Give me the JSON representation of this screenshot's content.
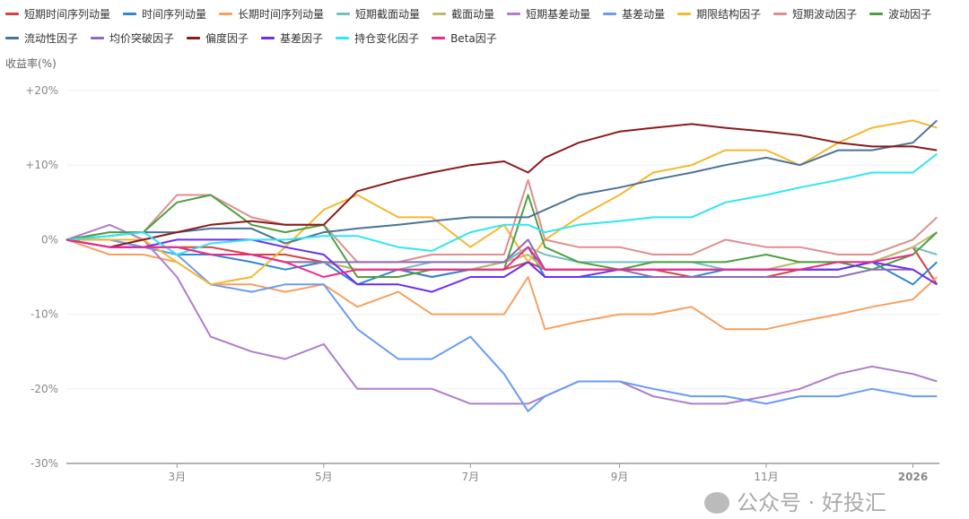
{
  "chart_data": {
    "type": "line",
    "title": "",
    "ylabel": "收益率(%)",
    "xlabel": "",
    "ylim": [
      -30,
      20
    ],
    "xlim": [
      "2025-01-14",
      "2026-01-12"
    ],
    "yticks": [
      "+20%",
      "+10%",
      "0%",
      "-10%",
      "-20%",
      "-30%"
    ],
    "ytick_values": [
      20,
      10,
      0,
      -10,
      -20,
      -30
    ],
    "xticks": [
      "3月",
      "5月",
      "7月",
      "9月",
      "11月",
      "2026"
    ],
    "xtick_dates": [
      "2025-03-01",
      "2025-05-01",
      "2025-07-01",
      "2025-09-01",
      "2025-11-01",
      "2026-01-01"
    ],
    "grid": true,
    "legend_position": "top",
    "x": [
      "2025-01-14",
      "2025-02-01",
      "2025-02-15",
      "2025-03-01",
      "2025-03-15",
      "2025-04-01",
      "2025-04-15",
      "2025-05-01",
      "2025-05-15",
      "2025-06-01",
      "2025-06-15",
      "2025-07-01",
      "2025-07-15",
      "2025-07-25",
      "2025-08-01",
      "2025-08-15",
      "2025-09-01",
      "2025-09-15",
      "2025-10-01",
      "2025-10-15",
      "2025-11-01",
      "2025-11-15",
      "2025-12-01",
      "2025-12-15",
      "2026-01-01",
      "2026-01-11"
    ],
    "series": [
      {
        "name": "短期时间序列动量",
        "color": "#D9413F",
        "values": [
          0,
          -1,
          -1,
          -1,
          -1,
          -2,
          -2,
          -3,
          -4,
          -4,
          -5,
          -4,
          -4,
          -3,
          -4,
          -4,
          -4,
          -4,
          -5,
          -5,
          -5,
          -4,
          -4,
          -3,
          -1,
          -6
        ]
      },
      {
        "name": "时间序列动量",
        "color": "#2E86D6",
        "values": [
          0,
          -1,
          -1,
          -2,
          -2,
          -3,
          -4,
          -3,
          -6,
          -4,
          -5,
          -4,
          -3,
          -1,
          -5,
          -5,
          -5,
          -5,
          -5,
          -4,
          -4,
          -4,
          -4,
          -3,
          -6,
          -3
        ]
      },
      {
        "name": "长期时间序列动量",
        "color": "#F7A05E",
        "values": [
          0,
          -2,
          -2,
          -3,
          -6,
          -6,
          -7,
          -6,
          -9,
          -7,
          -10,
          -10,
          -10,
          -5,
          -12,
          -11,
          -10,
          -10,
          -9,
          -12,
          -12,
          -11,
          -10,
          -9,
          -8,
          -5
        ]
      },
      {
        "name": "短期截面动量",
        "color": "#6FC1BF",
        "values": [
          0,
          0,
          -1,
          -1,
          -2,
          -2,
          -3,
          -3,
          -4,
          -4,
          -3,
          -3,
          -3,
          -1,
          -2,
          -3,
          -3,
          -3,
          -3,
          -4,
          -4,
          -3,
          -3,
          -3,
          -1,
          -2
        ]
      },
      {
        "name": "截面动量",
        "color": "#C0B86A",
        "values": [
          0,
          0,
          -1,
          -1,
          -2,
          -2,
          -3,
          -3,
          -4,
          -4,
          -4,
          -4,
          -3,
          -2,
          -4,
          -4,
          -4,
          -4,
          -4,
          -4,
          -4,
          -3,
          -3,
          -3,
          -1,
          1
        ]
      },
      {
        "name": "短期基差动量",
        "color": "#B07CCB",
        "values": [
          0,
          2,
          0,
          -5,
          -13,
          -15,
          -16,
          -14,
          -20,
          -20,
          -20,
          -22,
          -22,
          -22,
          -21,
          -19,
          -19,
          -21,
          -22,
          -22,
          -21,
          -20,
          -18,
          -17,
          -18,
          -19
        ]
      },
      {
        "name": "基差动量",
        "color": "#6A9BF5",
        "values": [
          0,
          0,
          -1,
          -2,
          -6,
          -7,
          -6,
          -6,
          -12,
          -16,
          -16,
          -13,
          -18,
          -23,
          -21,
          -19,
          -19,
          -20,
          -21,
          -21,
          -22,
          -21,
          -21,
          -20,
          -21,
          -21
        ]
      },
      {
        "name": "期限结构因子",
        "color": "#F5B82E",
        "values": [
          0,
          0,
          0,
          -3,
          -6,
          -5,
          -1,
          4,
          6,
          3,
          3,
          -1,
          2,
          -3,
          0,
          3,
          6,
          9,
          10,
          12,
          12,
          10,
          13,
          15,
          16,
          15
        ]
      },
      {
        "name": "短期波动因子",
        "color": "#E08E8E",
        "values": [
          0,
          1,
          1,
          6,
          6,
          3,
          2,
          2,
          -3,
          -3,
          -2,
          -2,
          -2,
          8,
          0,
          -1,
          -1,
          -2,
          -2,
          0,
          -1,
          -1,
          -2,
          -2,
          0,
          3
        ]
      },
      {
        "name": "波动因子",
        "color": "#4CA040",
        "values": [
          0,
          1,
          1,
          5,
          6,
          2,
          1,
          2,
          -5,
          -5,
          -4,
          -4,
          -4,
          6,
          -1,
          -3,
          -4,
          -3,
          -3,
          -3,
          -2,
          -3,
          -3,
          -4,
          -2,
          1
        ]
      },
      {
        "name": "流动性因子",
        "color": "#4A7399",
        "values": [
          0,
          0.5,
          1,
          1,
          1.5,
          1.5,
          -0.5,
          1,
          1.5,
          2,
          2.5,
          3,
          3,
          3,
          4,
          6,
          7,
          8,
          9,
          10,
          11,
          10,
          12,
          12,
          13,
          16
        ]
      },
      {
        "name": "均价突破因子",
        "color": "#8E6BB8",
        "values": [
          0,
          -1,
          -1,
          -1,
          -2,
          -2,
          -3,
          -3,
          -3,
          -3,
          -3,
          -3,
          -3,
          0,
          -4,
          -4,
          -4,
          -5,
          -5,
          -5,
          -5,
          -5,
          -5,
          -4,
          -4,
          -6
        ]
      },
      {
        "name": "偏度因子",
        "color": "#8B1A1A",
        "values": [
          0,
          -1,
          0,
          1,
          2,
          2.5,
          2,
          2,
          6.5,
          8,
          9,
          10,
          10.5,
          9,
          11,
          13,
          14.5,
          15,
          15.5,
          15,
          14.5,
          14,
          13,
          12.5,
          12.5,
          12
        ]
      },
      {
        "name": "基差因子",
        "color": "#6A2EF5",
        "values": [
          0,
          -1,
          -1,
          0,
          0,
          0,
          -1,
          -2,
          -6,
          -6,
          -7,
          -5,
          -5,
          -3,
          -5,
          -5,
          -4,
          -4,
          -4,
          -4,
          -4,
          -4,
          -4,
          -3,
          -4,
          -6
        ]
      },
      {
        "name": "持仓变化因子",
        "color": "#2EE6F5",
        "values": [
          0,
          0.5,
          1,
          -2,
          -0.5,
          0,
          0,
          0.5,
          0.5,
          -1,
          -1.5,
          1,
          2,
          2,
          1,
          2,
          2.5,
          3,
          3,
          5,
          6,
          7,
          8,
          9,
          9,
          11.5
        ]
      },
      {
        "name": "Beta因子",
        "color": "#F0288C",
        "values": [
          0,
          -1,
          -1,
          -1,
          -2,
          -2,
          -3,
          -5,
          -4,
          -4,
          -4,
          -4,
          -4,
          -1,
          -4,
          -4,
          -4,
          -4,
          -4,
          -4,
          -4,
          -4,
          -3,
          -3,
          -2,
          null
        ]
      }
    ]
  },
  "watermark": "公众号 · 好投汇"
}
